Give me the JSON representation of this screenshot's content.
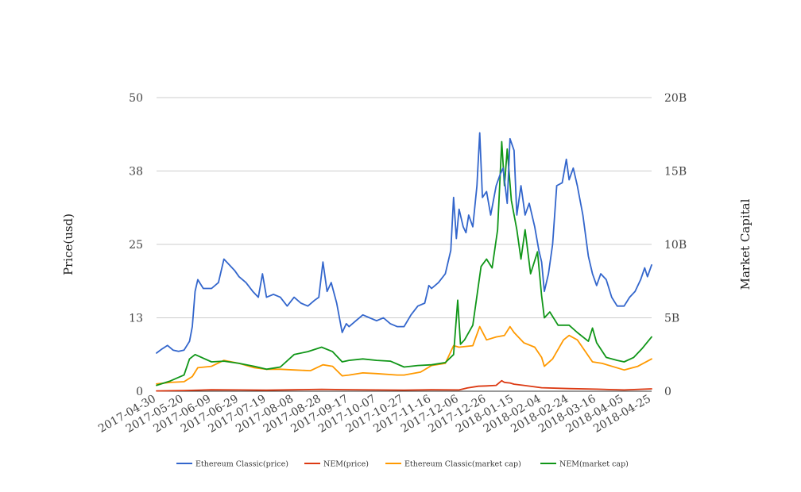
{
  "chart_data": {
    "type": "line",
    "title": "",
    "x_ticks": [
      "2017-04-30",
      "2017-05-20",
      "2017-06-09",
      "2017-06-29",
      "2017-07-19",
      "2017-08-08",
      "2017-08-28",
      "2017-09-17",
      "2017-10-07",
      "2017-10-27",
      "2017-11-16",
      "2017-12-06",
      "2017-12-26",
      "2018-01-15",
      "2018-02-04",
      "2018-02-24",
      "2018-03-16",
      "2018-04-05",
      "2018-04-25"
    ],
    "x_range": [
      "2017-04-30",
      "2018-04-25"
    ],
    "left_axis": {
      "label": "Price(usd)",
      "ticks": [
        "0",
        "13",
        "25",
        "38",
        "50"
      ],
      "range": [
        0,
        50
      ]
    },
    "right_axis": {
      "label": "Market Capital",
      "ticks": [
        "0",
        "5B",
        "10B",
        "15B",
        "20B"
      ],
      "range": [
        0,
        20000000000
      ]
    },
    "grid": true,
    "legend_position": "bottom",
    "series": [
      {
        "name": "Ethereum Classic(price)",
        "axis": "left",
        "color": "#3366cc",
        "points": [
          [
            "2017-04-30",
            6.5
          ],
          [
            "2017-05-04",
            7.2
          ],
          [
            "2017-05-08",
            7.8
          ],
          [
            "2017-05-12",
            7.0
          ],
          [
            "2017-05-16",
            6.8
          ],
          [
            "2017-05-20",
            7.0
          ],
          [
            "2017-05-24",
            8.5
          ],
          [
            "2017-05-26",
            11
          ],
          [
            "2017-05-28",
            17
          ],
          [
            "2017-05-30",
            19
          ],
          [
            "2017-06-03",
            17.5
          ],
          [
            "2017-06-09",
            17.5
          ],
          [
            "2017-06-14",
            18.5
          ],
          [
            "2017-06-18",
            22.5
          ],
          [
            "2017-06-22",
            21.5
          ],
          [
            "2017-06-26",
            20.5
          ],
          [
            "2017-06-29",
            19.5
          ],
          [
            "2017-07-04",
            18.5
          ],
          [
            "2017-07-09",
            17
          ],
          [
            "2017-07-13",
            16
          ],
          [
            "2017-07-16",
            20
          ],
          [
            "2017-07-19",
            16
          ],
          [
            "2017-07-24",
            16.5
          ],
          [
            "2017-07-29",
            16
          ],
          [
            "2017-08-03",
            14.5
          ],
          [
            "2017-08-08",
            16
          ],
          [
            "2017-08-13",
            15
          ],
          [
            "2017-08-18",
            14.5
          ],
          [
            "2017-08-23",
            15.5
          ],
          [
            "2017-08-26",
            16
          ],
          [
            "2017-08-29",
            22
          ],
          [
            "2017-09-01",
            17
          ],
          [
            "2017-09-04",
            18.5
          ],
          [
            "2017-09-08",
            15
          ],
          [
            "2017-09-12",
            10
          ],
          [
            "2017-09-15",
            11.5
          ],
          [
            "2017-09-17",
            11
          ],
          [
            "2017-09-22",
            12
          ],
          [
            "2017-09-27",
            13
          ],
          [
            "2017-10-02",
            12.5
          ],
          [
            "2017-10-07",
            12
          ],
          [
            "2017-10-12",
            12.5
          ],
          [
            "2017-10-17",
            11.5
          ],
          [
            "2017-10-22",
            11
          ],
          [
            "2017-10-27",
            11
          ],
          [
            "2017-11-01",
            13
          ],
          [
            "2017-11-06",
            14.5
          ],
          [
            "2017-11-11",
            15
          ],
          [
            "2017-11-14",
            18
          ],
          [
            "2017-11-16",
            17.5
          ],
          [
            "2017-11-21",
            18.5
          ],
          [
            "2017-11-26",
            20
          ],
          [
            "2017-11-30",
            24
          ],
          [
            "2017-12-02",
            33
          ],
          [
            "2017-12-04",
            26
          ],
          [
            "2017-12-06",
            31
          ],
          [
            "2017-12-09",
            28
          ],
          [
            "2017-12-11",
            27
          ],
          [
            "2017-12-13",
            30
          ],
          [
            "2017-12-16",
            28
          ],
          [
            "2017-12-19",
            35
          ],
          [
            "2017-12-21",
            44
          ],
          [
            "2017-12-23",
            33
          ],
          [
            "2017-12-26",
            34
          ],
          [
            "2017-12-29",
            30
          ],
          [
            "2018-01-02",
            35
          ],
          [
            "2018-01-05",
            37
          ],
          [
            "2018-01-07",
            38
          ],
          [
            "2018-01-10",
            32
          ],
          [
            "2018-01-12",
            43
          ],
          [
            "2018-01-15",
            41
          ],
          [
            "2018-01-17",
            30
          ],
          [
            "2018-01-20",
            35
          ],
          [
            "2018-01-23",
            30
          ],
          [
            "2018-01-26",
            32
          ],
          [
            "2018-01-30",
            28
          ],
          [
            "2018-02-02",
            24
          ],
          [
            "2018-02-04",
            22
          ],
          [
            "2018-02-06",
            17
          ],
          [
            "2018-02-09",
            20
          ],
          [
            "2018-02-12",
            25
          ],
          [
            "2018-02-15",
            35
          ],
          [
            "2018-02-19",
            35.5
          ],
          [
            "2018-02-22",
            39.5
          ],
          [
            "2018-02-24",
            36
          ],
          [
            "2018-02-27",
            38
          ],
          [
            "2018-03-02",
            35
          ],
          [
            "2018-03-06",
            30
          ],
          [
            "2018-03-10",
            23
          ],
          [
            "2018-03-13",
            20
          ],
          [
            "2018-03-16",
            18
          ],
          [
            "2018-03-19",
            20
          ],
          [
            "2018-03-23",
            19
          ],
          [
            "2018-03-27",
            16
          ],
          [
            "2018-03-31",
            14.5
          ],
          [
            "2018-04-05",
            14.5
          ],
          [
            "2018-04-09",
            16
          ],
          [
            "2018-04-13",
            17
          ],
          [
            "2018-04-17",
            19
          ],
          [
            "2018-04-20",
            21
          ],
          [
            "2018-04-22",
            19.5
          ],
          [
            "2018-04-25",
            21.5
          ]
        ]
      },
      {
        "name": "NEM(price)",
        "axis": "left",
        "color": "#dc3912",
        "points": [
          [
            "2017-04-30",
            0.05
          ],
          [
            "2017-05-20",
            0.12
          ],
          [
            "2017-06-09",
            0.24
          ],
          [
            "2017-06-29",
            0.22
          ],
          [
            "2017-07-19",
            0.17
          ],
          [
            "2017-08-08",
            0.24
          ],
          [
            "2017-08-28",
            0.32
          ],
          [
            "2017-09-17",
            0.25
          ],
          [
            "2017-10-07",
            0.22
          ],
          [
            "2017-10-27",
            0.19
          ],
          [
            "2017-11-16",
            0.24
          ],
          [
            "2017-12-06",
            0.22
          ],
          [
            "2017-12-12",
            0.55
          ],
          [
            "2017-12-20",
            0.85
          ],
          [
            "2017-12-26",
            0.9
          ],
          [
            "2018-01-02",
            1.0
          ],
          [
            "2018-01-06",
            1.8
          ],
          [
            "2018-01-08",
            1.5
          ],
          [
            "2018-01-12",
            1.4
          ],
          [
            "2018-01-15",
            1.2
          ],
          [
            "2018-01-22",
            1.0
          ],
          [
            "2018-02-04",
            0.6
          ],
          [
            "2018-02-24",
            0.45
          ],
          [
            "2018-03-16",
            0.35
          ],
          [
            "2018-04-05",
            0.22
          ],
          [
            "2018-04-25",
            0.4
          ]
        ]
      },
      {
        "name": "Ethereum Classic(market cap)",
        "axis": "right",
        "color": "#ff9900",
        "points": [
          [
            "2017-04-30",
            500000000
          ],
          [
            "2017-05-10",
            600000000
          ],
          [
            "2017-05-20",
            650000000
          ],
          [
            "2017-05-26",
            1000000000
          ],
          [
            "2017-05-30",
            1600000000
          ],
          [
            "2017-06-09",
            1700000000
          ],
          [
            "2017-06-18",
            2100000000
          ],
          [
            "2017-06-29",
            1900000000
          ],
          [
            "2017-07-10",
            1600000000
          ],
          [
            "2017-07-19",
            1500000000
          ],
          [
            "2017-07-29",
            1500000000
          ],
          [
            "2017-08-08",
            1450000000
          ],
          [
            "2017-08-20",
            1400000000
          ],
          [
            "2017-08-29",
            1800000000
          ],
          [
            "2017-09-05",
            1700000000
          ],
          [
            "2017-09-12",
            1050000000
          ],
          [
            "2017-09-17",
            1100000000
          ],
          [
            "2017-09-27",
            1250000000
          ],
          [
            "2017-10-07",
            1200000000
          ],
          [
            "2017-10-22",
            1100000000
          ],
          [
            "2017-10-27",
            1100000000
          ],
          [
            "2017-11-08",
            1300000000
          ],
          [
            "2017-11-16",
            1750000000
          ],
          [
            "2017-11-26",
            1900000000
          ],
          [
            "2017-12-02",
            3100000000
          ],
          [
            "2017-12-06",
            3000000000
          ],
          [
            "2017-12-16",
            3100000000
          ],
          [
            "2017-12-21",
            4400000000
          ],
          [
            "2017-12-26",
            3500000000
          ],
          [
            "2018-01-02",
            3700000000
          ],
          [
            "2018-01-08",
            3800000000
          ],
          [
            "2018-01-12",
            4400000000
          ],
          [
            "2018-01-15",
            4000000000
          ],
          [
            "2018-01-22",
            3300000000
          ],
          [
            "2018-01-30",
            3000000000
          ],
          [
            "2018-02-04",
            2300000000
          ],
          [
            "2018-02-06",
            1700000000
          ],
          [
            "2018-02-12",
            2200000000
          ],
          [
            "2018-02-20",
            3500000000
          ],
          [
            "2018-02-24",
            3800000000
          ],
          [
            "2018-03-02",
            3500000000
          ],
          [
            "2018-03-13",
            2000000000
          ],
          [
            "2018-03-20",
            1900000000
          ],
          [
            "2018-04-05",
            1450000000
          ],
          [
            "2018-04-15",
            1700000000
          ],
          [
            "2018-04-25",
            2200000000
          ]
        ]
      },
      {
        "name": "NEM(market cap)",
        "axis": "right",
        "color": "#109618",
        "points": [
          [
            "2017-04-30",
            400000000
          ],
          [
            "2017-05-10",
            700000000
          ],
          [
            "2017-05-20",
            1100000000
          ],
          [
            "2017-05-24",
            2200000000
          ],
          [
            "2017-05-28",
            2500000000
          ],
          [
            "2017-06-09",
            2000000000
          ],
          [
            "2017-06-18",
            2050000000
          ],
          [
            "2017-06-29",
            1900000000
          ],
          [
            "2017-07-10",
            1700000000
          ],
          [
            "2017-07-19",
            1500000000
          ],
          [
            "2017-07-29",
            1650000000
          ],
          [
            "2017-08-08",
            2500000000
          ],
          [
            "2017-08-18",
            2700000000
          ],
          [
            "2017-08-28",
            3000000000
          ],
          [
            "2017-09-05",
            2700000000
          ],
          [
            "2017-09-12",
            2000000000
          ],
          [
            "2017-09-17",
            2100000000
          ],
          [
            "2017-09-27",
            2200000000
          ],
          [
            "2017-10-07",
            2100000000
          ],
          [
            "2017-10-17",
            2050000000
          ],
          [
            "2017-10-27",
            1650000000
          ],
          [
            "2017-11-06",
            1750000000
          ],
          [
            "2017-11-16",
            1800000000
          ],
          [
            "2017-11-26",
            1950000000
          ],
          [
            "2017-12-02",
            2500000000
          ],
          [
            "2017-12-05",
            6200000000
          ],
          [
            "2017-12-07",
            3200000000
          ],
          [
            "2017-12-10",
            3500000000
          ],
          [
            "2017-12-16",
            4500000000
          ],
          [
            "2017-12-22",
            8500000000
          ],
          [
            "2017-12-26",
            9000000000
          ],
          [
            "2017-12-30",
            8400000000
          ],
          [
            "2018-01-03",
            11000000000
          ],
          [
            "2018-01-06",
            17000000000
          ],
          [
            "2018-01-08",
            14000000000
          ],
          [
            "2018-01-10",
            16500000000
          ],
          [
            "2018-01-13",
            13000000000
          ],
          [
            "2018-01-17",
            11000000000
          ],
          [
            "2018-01-20",
            9000000000
          ],
          [
            "2018-01-23",
            11000000000
          ],
          [
            "2018-01-27",
            8000000000
          ],
          [
            "2018-02-01",
            9500000000
          ],
          [
            "2018-02-04",
            6500000000
          ],
          [
            "2018-02-06",
            5000000000
          ],
          [
            "2018-02-10",
            5400000000
          ],
          [
            "2018-02-16",
            4500000000
          ],
          [
            "2018-02-24",
            4500000000
          ],
          [
            "2018-03-02",
            4000000000
          ],
          [
            "2018-03-10",
            3400000000
          ],
          [
            "2018-03-13",
            4300000000
          ],
          [
            "2018-03-16",
            3300000000
          ],
          [
            "2018-03-23",
            2300000000
          ],
          [
            "2018-03-31",
            2100000000
          ],
          [
            "2018-04-05",
            2000000000
          ],
          [
            "2018-04-12",
            2300000000
          ],
          [
            "2018-04-18",
            2900000000
          ],
          [
            "2018-04-25",
            3700000000
          ]
        ]
      }
    ]
  }
}
